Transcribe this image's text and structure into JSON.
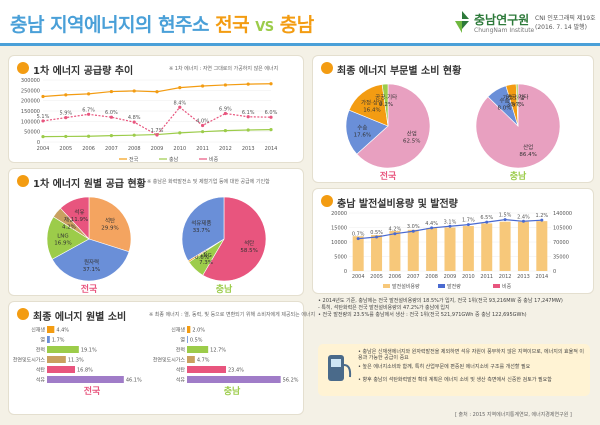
{
  "header": {
    "title_a": "충남 지역에너지의 현주소",
    "title_b": "전국",
    "title_vs": "VS",
    "title_c": "충남",
    "org": "충남연구원",
    "org_en": "ChungNam Institute",
    "issue": "CNI 인포그래픽 제19호 (2016. 7. 14 발행)"
  },
  "primary_supply": {
    "title": "1차 에너지 공급량 추이",
    "note": "※ 1차 에너지 : 자연 그대로의 가공하지 않은 에너지"
  },
  "primary_source": {
    "title": "1차 에너지 원별 공급 현황",
    "note": "※ 충남은 화력발전소 및 제철기업 등에 대한 공급에 기인함"
  },
  "final_source": {
    "title": "최종 에너지 원별 소비",
    "note": "※ 최종 에너지 : 열, 동력, 빛 등으로 변환되기 위해 소비자에게 제공되는 에너지"
  },
  "final_sector": {
    "title": "최종 에너지 부문별 소비 현황"
  },
  "power": {
    "title": "충남 발전설비용량 및 발전량"
  },
  "bullets": [
    "• 2014년도 기준, 충남에는 전국 발전설비용량의 18.5%가 입지, 전국 1위(전국 93,216MW 중 충남 17,247MW)",
    "  - 특히, 석탄화력은 전국 발전설비용량의 47.2%가 충남에 입지",
    "• 전국 발전량의 23.5%를 충남에서 생산 : 전국 1위(전국 521,971GWh 중 충남 122,695GWh)"
  ],
  "info": [
    "• 충남은 신재생에너지와 원자력발전을 제외하면 석유 자원이 풍부하지 않은 지역이므로, 에너지의 효율적 이용과 가능한 공급이 중요",
    "• 높은 에너지소비와 함께, 특히 산업부문에 편중된 에너지소비 구조를 개선할 필요",
    "• 향후 충남의 석탄화력발전 확대 계획은 에너지 소비 및 생산 측면에서 신중한 검토가 필요함"
  ],
  "source": "[ 출처 : 2015 지역에너지통계연보, 에너지경제연구원 ]",
  "colors": {
    "accent": "#4aa0d8",
    "orange": "#f39c12",
    "green": "#9ccc4a",
    "pink": "#e8557e"
  },
  "chart_data": [
    {
      "type": "line",
      "title": "1차 에너지 공급량 추이",
      "x": [
        "2004",
        "2005",
        "2006",
        "2007",
        "2008",
        "2009",
        "2010",
        "2011",
        "2012",
        "2013",
        "2014"
      ],
      "series": [
        {
          "name": "전국",
          "values": [
            220000,
            228000,
            233000,
            244000,
            247000,
            243000,
            263000,
            271000,
            276000,
            280000,
            282000
          ]
        },
        {
          "name": "충남",
          "values": [
            26000,
            27000,
            28000,
            31000,
            33000,
            36000,
            44000,
            50000,
            55000,
            58000,
            60000
          ]
        },
        {
          "name": "비중",
          "values": [
            5.1,
            5.9,
            6.7,
            6.0,
            4.8,
            1.7,
            8.4,
            4.0,
            6.9,
            6.1,
            6.0
          ]
        }
      ]
    },
    {
      "type": "pie",
      "title": "1차 에너지 원별 공급 현황",
      "region": "전국",
      "labels": [
        "석탄",
        "원자력",
        "LNG",
        "재생",
        "석유"
      ],
      "values": [
        29.9,
        37.1,
        16.9,
        4.2,
        11.9
      ]
    },
    {
      "type": "pie",
      "title": "1차 에너지 원별 공급 현황",
      "region": "충남",
      "labels": [
        "석탄",
        "LNG",
        "재생",
        "석유제품"
      ],
      "values": [
        58.5,
        7.3,
        0.6,
        33.7
      ]
    },
    {
      "type": "bar",
      "title": "최종 에너지 원별 소비",
      "region": "전국",
      "categories": [
        "신재생",
        "열",
        "전력",
        "천연및도시가스",
        "석탄",
        "석유"
      ],
      "values": [
        4.4,
        1.7,
        19.1,
        11.3,
        16.8,
        46.1
      ]
    },
    {
      "type": "bar",
      "title": "최종 에너지 원별 소비",
      "region": "충남",
      "categories": [
        "신재생",
        "열",
        "전력",
        "천연및도시가스",
        "석탄",
        "석유"
      ],
      "values": [
        2.0,
        0.5,
        12.7,
        4.7,
        23.4,
        56.2
      ]
    },
    {
      "type": "pie",
      "title": "최종 에너지 부문별 소비 현황",
      "region": "전국",
      "labels": [
        "산업",
        "수송",
        "가정·상업",
        "공공·기타"
      ],
      "values": [
        62.5,
        17.6,
        16.4,
        2.2
      ]
    },
    {
      "type": "pie",
      "title": "최종 에너지 부문별 소비 현황",
      "region": "충남",
      "labels": [
        "산업",
        "수송",
        "가정·상업",
        "공공·기타"
      ],
      "values": [
        86.4,
        8.0,
        3.9,
        0.7
      ]
    },
    {
      "type": "bar",
      "title": "충남 발전설비용량 및 발전량",
      "x": [
        "2004",
        "2005",
        "2006",
        "2007",
        "2008",
        "2009",
        "2010",
        "2011",
        "2012",
        "2013",
        "2014"
      ],
      "series": [
        {
          "name": "발전설비용량",
          "values": [
            12000,
            12400,
            13800,
            14200,
            14800,
            15000,
            15500,
            16400,
            17000,
            17000,
            17200
          ]
        },
        {
          "name": "발전량",
          "values": [
            78000,
            82000,
            90000,
            96000,
            104000,
            108000,
            112000,
            118000,
            124000,
            120000,
            122695
          ]
        },
        {
          "name": "비중",
          "values": [
            0.7,
            0.5,
            4.2,
            3.0,
            4.4,
            3.1,
            1.7,
            6.5,
            1.5,
            2.4,
            1.2
          ]
        }
      ]
    }
  ]
}
